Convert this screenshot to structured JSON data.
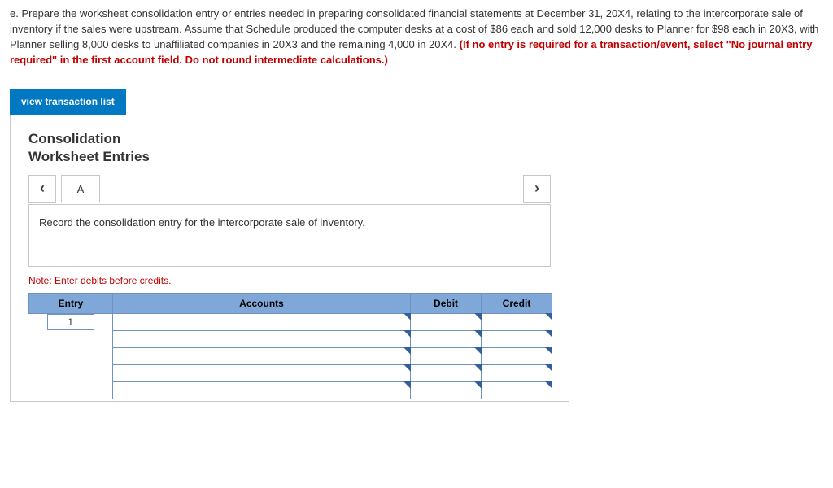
{
  "question": {
    "prefix": "e. Prepare the worksheet consolidation entry or entries needed in preparing consolidated financial statements at December 31, 20X4, relating to the intercorporate sale of inventory if the sales were upstream. Assume that Schedule produced the computer desks at a cost of $86 each and sold 12,000 desks to Planner for $98 each in 20X3, with Planner selling 8,000 desks to unaffiliated companies in 20X3 and the remaining 4,000 in 20X4. ",
    "emphasis": "(If no entry is required for a transaction/event, select \"No journal entry required\" in the first account field. Do not round intermediate calculations.)"
  },
  "buttons": {
    "view_list": "view transaction list"
  },
  "panel": {
    "title_line1": "Consolidation",
    "title_line2": "Worksheet Entries",
    "tab_label": "A",
    "instruction": "Record the consolidation entry for the intercorporate sale of inventory.",
    "note": "Note: Enter debits before credits."
  },
  "table": {
    "headers": {
      "entry": "Entry",
      "accounts": "Accounts",
      "debit": "Debit",
      "credit": "Credit"
    },
    "first_entry": "1",
    "row_count": 5
  },
  "colors": {
    "header_bg": "#7fa8d9",
    "header_border": "#6f92bf",
    "button_bg": "#0079c2",
    "red": "#c00000"
  }
}
